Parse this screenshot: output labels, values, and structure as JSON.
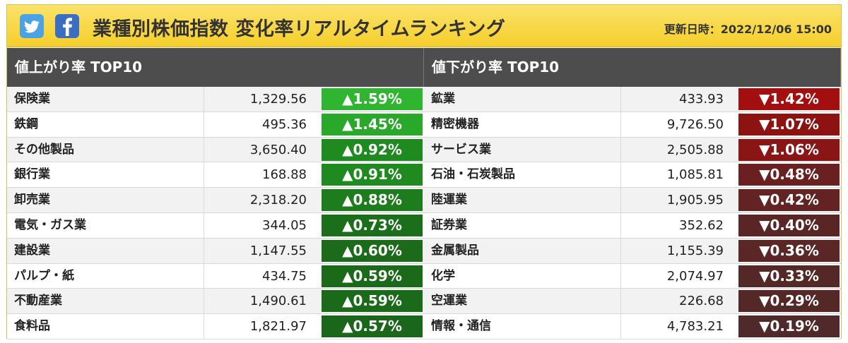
{
  "header": {
    "title": "業種別株価指数 変化率リアルタイムランキング",
    "updated": "更新日時：2022/12/06 15:00",
    "icons": [
      "twitter-icon",
      "facebook-icon"
    ]
  },
  "colors": {
    "up": [
      "#2fb52f",
      "#2aa82a",
      "#1f8a1f",
      "#1f8a1f",
      "#1d7d1d",
      "#1b6f1b",
      "#1b6b1b",
      "#1a6a1a",
      "#1a6a1a",
      "#1a661a"
    ],
    "down": [
      "#a30e0e",
      "#8d1212",
      "#8a1515",
      "#6a2020",
      "#632323",
      "#5a2525",
      "#5a2626",
      "#552828",
      "#552828",
      "#502a2a"
    ]
  },
  "gainers": {
    "heading": "値上がり率 TOP10",
    "rows": [
      {
        "name": "保険業",
        "value": "1,329.56",
        "rate": "▲1.59%"
      },
      {
        "name": "鉄鋼",
        "value": "495.36",
        "rate": "▲1.45%"
      },
      {
        "name": "その他製品",
        "value": "3,650.40",
        "rate": "▲0.92%"
      },
      {
        "name": "銀行業",
        "value": "168.88",
        "rate": "▲0.91%"
      },
      {
        "name": "卸売業",
        "value": "2,318.20",
        "rate": "▲0.88%"
      },
      {
        "name": "電気・ガス業",
        "value": "344.05",
        "rate": "▲0.73%"
      },
      {
        "name": "建設業",
        "value": "1,147.55",
        "rate": "▲0.60%"
      },
      {
        "name": "パルプ・紙",
        "value": "434.75",
        "rate": "▲0.59%"
      },
      {
        "name": "不動産業",
        "value": "1,490.61",
        "rate": "▲0.59%"
      },
      {
        "name": "食料品",
        "value": "1,821.97",
        "rate": "▲0.57%"
      }
    ]
  },
  "losers": {
    "heading": "値下がり率 TOP10",
    "rows": [
      {
        "name": "鉱業",
        "value": "433.93",
        "rate": "▼1.42%"
      },
      {
        "name": "精密機器",
        "value": "9,726.50",
        "rate": "▼1.07%"
      },
      {
        "name": "サービス業",
        "value": "2,505.88",
        "rate": "▼1.06%"
      },
      {
        "name": "石油・石炭製品",
        "value": "1,085.81",
        "rate": "▼0.48%"
      },
      {
        "name": "陸運業",
        "value": "1,905.95",
        "rate": "▼0.42%"
      },
      {
        "name": "証券業",
        "value": "352.62",
        "rate": "▼0.40%"
      },
      {
        "name": "金属製品",
        "value": "1,155.39",
        "rate": "▼0.36%"
      },
      {
        "name": "化学",
        "value": "2,074.97",
        "rate": "▼0.33%"
      },
      {
        "name": "空運業",
        "value": "226.68",
        "rate": "▼0.29%"
      },
      {
        "name": "情報・通信",
        "value": "4,783.21",
        "rate": "▼0.19%"
      }
    ]
  }
}
